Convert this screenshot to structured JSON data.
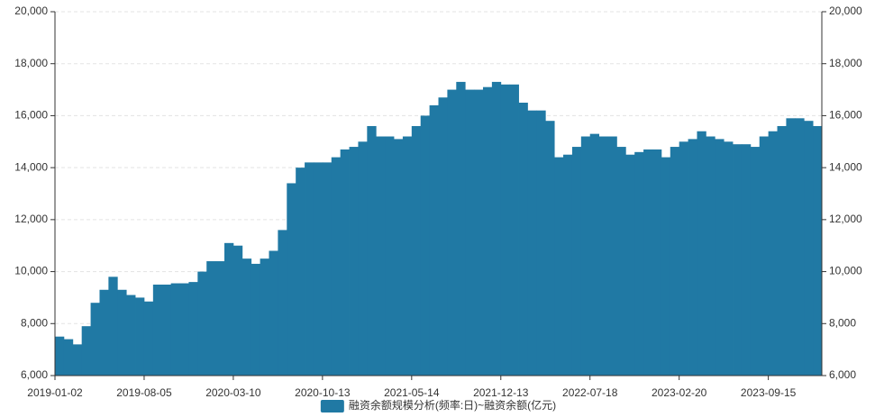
{
  "chart_data": {
    "type": "bar",
    "categories": [
      "2019-01-02",
      null,
      null,
      null,
      null,
      null,
      null,
      null,
      null,
      null,
      "2019-08-05",
      null,
      null,
      null,
      null,
      null,
      null,
      null,
      null,
      null,
      "2020-03-10",
      null,
      null,
      null,
      null,
      null,
      null,
      null,
      null,
      null,
      "2020-10-13",
      null,
      null,
      null,
      null,
      null,
      null,
      null,
      null,
      null,
      "2021-05-14",
      null,
      null,
      null,
      null,
      null,
      null,
      null,
      null,
      null,
      "2021-12-13",
      null,
      null,
      null,
      null,
      null,
      null,
      null,
      null,
      null,
      "2022-07-18",
      null,
      null,
      null,
      null,
      null,
      null,
      null,
      null,
      null,
      "2023-02-20",
      null,
      null,
      null,
      null,
      null,
      null,
      null,
      null,
      null,
      "2023-09-15",
      null,
      null,
      null,
      null,
      null
    ],
    "series": [
      {
        "name": "融资余额规模分析(频率:日)~融资余额(亿元)",
        "color": "#2079a4",
        "values": [
          7500,
          7400,
          7200,
          7900,
          8800,
          9300,
          9800,
          9300,
          9100,
          9000,
          8850,
          9500,
          9500,
          9550,
          9550,
          9600,
          10000,
          10400,
          10400,
          11100,
          11000,
          10500,
          10300,
          10500,
          10800,
          11600,
          13400,
          14000,
          14200,
          14200,
          14200,
          14400,
          14700,
          14800,
          15000,
          15600,
          15200,
          15200,
          15100,
          15200,
          15600,
          16000,
          16400,
          16700,
          17000,
          17300,
          17000,
          17000,
          17100,
          17300,
          17200,
          17200,
          16500,
          16200,
          16200,
          15800,
          14400,
          14500,
          14800,
          15200,
          15300,
          15200,
          15200,
          14800,
          14500,
          14600,
          14700,
          14700,
          14400,
          14800,
          15000,
          15100,
          15400,
          15200,
          15100,
          15000,
          14900,
          14900,
          14800,
          15200,
          15400,
          15600,
          15900,
          15900,
          15800,
          15600
        ]
      }
    ],
    "ylim": [
      6000,
      20000
    ],
    "yticks": [
      {
        "value": 6000,
        "label": "6,000"
      },
      {
        "value": 8000,
        "label": "8,000"
      },
      {
        "value": 10000,
        "label": "10,000"
      },
      {
        "value": 12000,
        "label": "12,000"
      },
      {
        "value": 14000,
        "label": "14,000"
      },
      {
        "value": 16000,
        "label": "16,000"
      },
      {
        "value": 18000,
        "label": "18,000"
      },
      {
        "value": 20000,
        "label": "20,000"
      }
    ],
    "grid": true,
    "legend": "bottom"
  }
}
